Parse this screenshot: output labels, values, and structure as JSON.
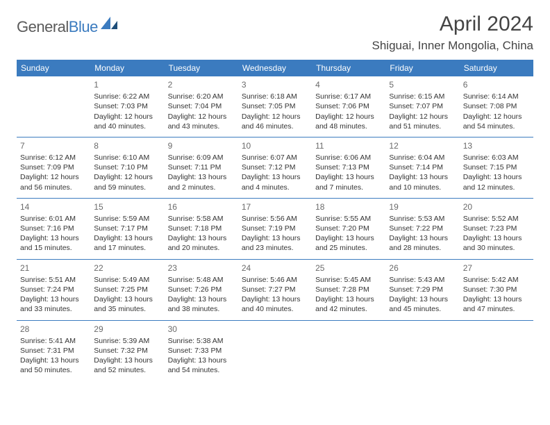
{
  "brand": {
    "text1": "General",
    "text2": "Blue"
  },
  "title": "April 2024",
  "subtitle": "Shiguai, Inner Mongolia, China",
  "colors": {
    "header_bg": "#3b7bbf",
    "header_text": "#ffffff",
    "border": "#3b7bbf",
    "text": "#333333",
    "daynum": "#6a6a6a",
    "background": "#ffffff",
    "logo_gray": "#5a5a5a",
    "logo_blue": "#3b7bbf"
  },
  "weekdays": [
    "Sunday",
    "Monday",
    "Tuesday",
    "Wednesday",
    "Thursday",
    "Friday",
    "Saturday"
  ],
  "weeks": [
    [
      null,
      {
        "n": "1",
        "sr": "6:22 AM",
        "ss": "7:03 PM",
        "dl": "12 hours and 40 minutes."
      },
      {
        "n": "2",
        "sr": "6:20 AM",
        "ss": "7:04 PM",
        "dl": "12 hours and 43 minutes."
      },
      {
        "n": "3",
        "sr": "6:18 AM",
        "ss": "7:05 PM",
        "dl": "12 hours and 46 minutes."
      },
      {
        "n": "4",
        "sr": "6:17 AM",
        "ss": "7:06 PM",
        "dl": "12 hours and 48 minutes."
      },
      {
        "n": "5",
        "sr": "6:15 AM",
        "ss": "7:07 PM",
        "dl": "12 hours and 51 minutes."
      },
      {
        "n": "6",
        "sr": "6:14 AM",
        "ss": "7:08 PM",
        "dl": "12 hours and 54 minutes."
      }
    ],
    [
      {
        "n": "7",
        "sr": "6:12 AM",
        "ss": "7:09 PM",
        "dl": "12 hours and 56 minutes."
      },
      {
        "n": "8",
        "sr": "6:10 AM",
        "ss": "7:10 PM",
        "dl": "12 hours and 59 minutes."
      },
      {
        "n": "9",
        "sr": "6:09 AM",
        "ss": "7:11 PM",
        "dl": "13 hours and 2 minutes."
      },
      {
        "n": "10",
        "sr": "6:07 AM",
        "ss": "7:12 PM",
        "dl": "13 hours and 4 minutes."
      },
      {
        "n": "11",
        "sr": "6:06 AM",
        "ss": "7:13 PM",
        "dl": "13 hours and 7 minutes."
      },
      {
        "n": "12",
        "sr": "6:04 AM",
        "ss": "7:14 PM",
        "dl": "13 hours and 10 minutes."
      },
      {
        "n": "13",
        "sr": "6:03 AM",
        "ss": "7:15 PM",
        "dl": "13 hours and 12 minutes."
      }
    ],
    [
      {
        "n": "14",
        "sr": "6:01 AM",
        "ss": "7:16 PM",
        "dl": "13 hours and 15 minutes."
      },
      {
        "n": "15",
        "sr": "5:59 AM",
        "ss": "7:17 PM",
        "dl": "13 hours and 17 minutes."
      },
      {
        "n": "16",
        "sr": "5:58 AM",
        "ss": "7:18 PM",
        "dl": "13 hours and 20 minutes."
      },
      {
        "n": "17",
        "sr": "5:56 AM",
        "ss": "7:19 PM",
        "dl": "13 hours and 23 minutes."
      },
      {
        "n": "18",
        "sr": "5:55 AM",
        "ss": "7:20 PM",
        "dl": "13 hours and 25 minutes."
      },
      {
        "n": "19",
        "sr": "5:53 AM",
        "ss": "7:22 PM",
        "dl": "13 hours and 28 minutes."
      },
      {
        "n": "20",
        "sr": "5:52 AM",
        "ss": "7:23 PM",
        "dl": "13 hours and 30 minutes."
      }
    ],
    [
      {
        "n": "21",
        "sr": "5:51 AM",
        "ss": "7:24 PM",
        "dl": "13 hours and 33 minutes."
      },
      {
        "n": "22",
        "sr": "5:49 AM",
        "ss": "7:25 PM",
        "dl": "13 hours and 35 minutes."
      },
      {
        "n": "23",
        "sr": "5:48 AM",
        "ss": "7:26 PM",
        "dl": "13 hours and 38 minutes."
      },
      {
        "n": "24",
        "sr": "5:46 AM",
        "ss": "7:27 PM",
        "dl": "13 hours and 40 minutes."
      },
      {
        "n": "25",
        "sr": "5:45 AM",
        "ss": "7:28 PM",
        "dl": "13 hours and 42 minutes."
      },
      {
        "n": "26",
        "sr": "5:43 AM",
        "ss": "7:29 PM",
        "dl": "13 hours and 45 minutes."
      },
      {
        "n": "27",
        "sr": "5:42 AM",
        "ss": "7:30 PM",
        "dl": "13 hours and 47 minutes."
      }
    ],
    [
      {
        "n": "28",
        "sr": "5:41 AM",
        "ss": "7:31 PM",
        "dl": "13 hours and 50 minutes."
      },
      {
        "n": "29",
        "sr": "5:39 AM",
        "ss": "7:32 PM",
        "dl": "13 hours and 52 minutes."
      },
      {
        "n": "30",
        "sr": "5:38 AM",
        "ss": "7:33 PM",
        "dl": "13 hours and 54 minutes."
      },
      null,
      null,
      null,
      null
    ]
  ],
  "labels": {
    "sunrise": "Sunrise:",
    "sunset": "Sunset:",
    "daylight": "Daylight:"
  }
}
